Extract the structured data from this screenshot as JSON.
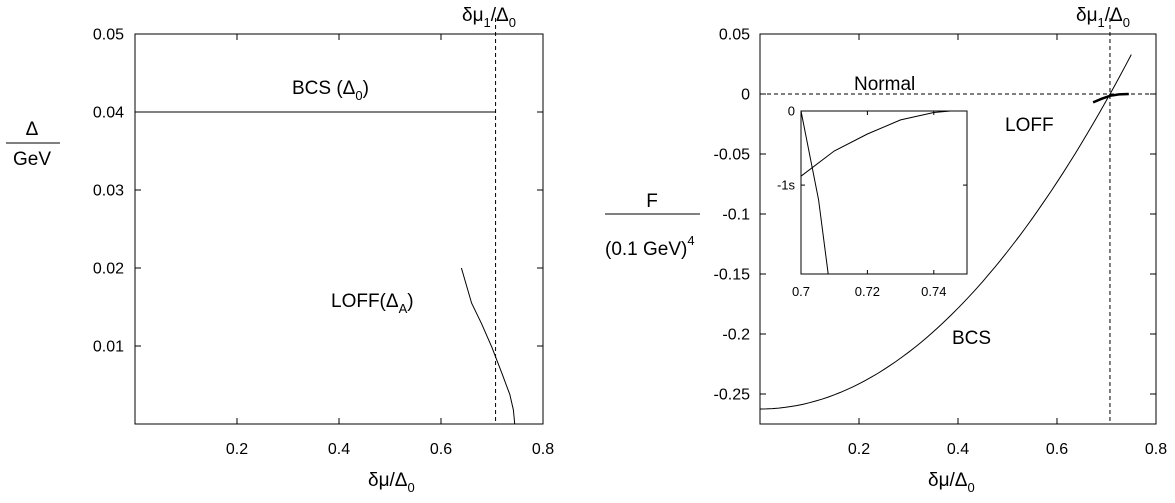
{
  "chart_data": [
    {
      "type": "line",
      "id": "gap",
      "ylabel_num": "Δ",
      "ylabel_den": "GeV",
      "xlabel": {
        "main": "δμ/Δ",
        "sub": "0"
      },
      "top_label": {
        "main": "δμ",
        "sub1": "1",
        "slash": "/Δ",
        "sub2": "0"
      },
      "xlim": [
        0,
        0.8
      ],
      "ylim": [
        0,
        0.05
      ],
      "xticks": [
        0.2,
        0.4,
        0.6,
        0.8
      ],
      "xtick_labels": [
        "0.2",
        "0.4",
        "0.6",
        "0.8"
      ],
      "yticks": [
        0.01,
        0.02,
        0.03,
        0.04,
        0.05
      ],
      "ytick_labels": [
        "0.01",
        "0.02",
        "0.03",
        "0.04",
        "0.05"
      ],
      "vline_x": 0.707,
      "series": [
        {
          "label": {
            "main": "BCS (Δ",
            "sub": "0",
            "tail": ")"
          },
          "x": [
            0,
            0.707
          ],
          "y": [
            0.04,
            0.04
          ]
        },
        {
          "label": {
            "main": "LOFF(Δ",
            "sub": "A",
            "tail": ")"
          },
          "x": [
            0.64,
            0.66,
            0.68,
            0.7,
            0.72,
            0.735,
            0.742,
            0.7445
          ],
          "y": [
            0.02,
            0.0155,
            0.0128,
            0.0098,
            0.0064,
            0.0038,
            0.0018,
            0.0
          ]
        }
      ]
    },
    {
      "type": "line",
      "id": "free-energy",
      "ylabel_num": "F",
      "ylabel_den": {
        "main": "(0.1 GeV)",
        "sup": "4"
      },
      "xlabel": {
        "main": "δμ/Δ",
        "sub": "0"
      },
      "top_label": {
        "main": "δμ",
        "sub1": "1",
        "slash": "/Δ",
        "sub2": "0"
      },
      "xlim": [
        0,
        0.8
      ],
      "ylim": [
        -0.275,
        0.05
      ],
      "xticks": [
        0.2,
        0.4,
        0.6,
        0.8
      ],
      "xtick_labels": [
        "0.2",
        "0.4",
        "0.6",
        "0.8"
      ],
      "yticks": [
        0.05,
        0,
        -0.05,
        -0.1,
        -0.15,
        -0.2,
        -0.25
      ],
      "ytick_labels": [
        "0.05",
        "0",
        "-0.05",
        "-0.1",
        "-0.15",
        "-0.2",
        "-0.25"
      ],
      "vline_x": 0.707,
      "hline_y": 0,
      "series": [
        {
          "label": "BCS",
          "formula": "F = -0.2625 + 0.525 x^2",
          "x": [
            0,
            0.1,
            0.2,
            0.3,
            0.4,
            0.5,
            0.6,
            0.7,
            0.75
          ],
          "y": [
            -0.2625,
            -0.2573,
            -0.2415,
            -0.2153,
            -0.1785,
            -0.1313,
            -0.0735,
            -0.0053,
            0.0328
          ]
        },
        {
          "label": "LOFF",
          "x": [
            0.673,
            0.69,
            0.707,
            0.725,
            0.745
          ],
          "y": [
            -0.007,
            -0.004,
            -0.0015,
            -0.0003,
            0.0
          ]
        },
        {
          "label": "Normal",
          "x": [
            0,
            0.8
          ],
          "y": [
            0,
            0
          ]
        }
      ],
      "inset": {
        "xlim": [
          0.7,
          0.75
        ],
        "ylim": [
          -2.2,
          0
        ],
        "xticks": [
          0.7,
          0.72,
          0.74
        ],
        "xtick_labels": [
          "0.7",
          "0.72",
          "0.74"
        ],
        "yticks": [
          0,
          -1
        ],
        "ytick_labels": [
          "0",
          "-1s"
        ],
        "series": [
          {
            "name": "BCS",
            "x": [
              0.7,
              0.7053,
              0.7082
            ],
            "y": [
              0.0,
              -1.2,
              -2.2
            ]
          },
          {
            "name": "LOFF",
            "x": [
              0.7,
              0.71,
              0.72,
              0.73,
              0.74,
              0.745,
              0.75
            ],
            "y": [
              -0.88,
              -0.54,
              -0.31,
              -0.12,
              -0.02,
              0.0,
              0.0
            ]
          }
        ]
      }
    }
  ]
}
